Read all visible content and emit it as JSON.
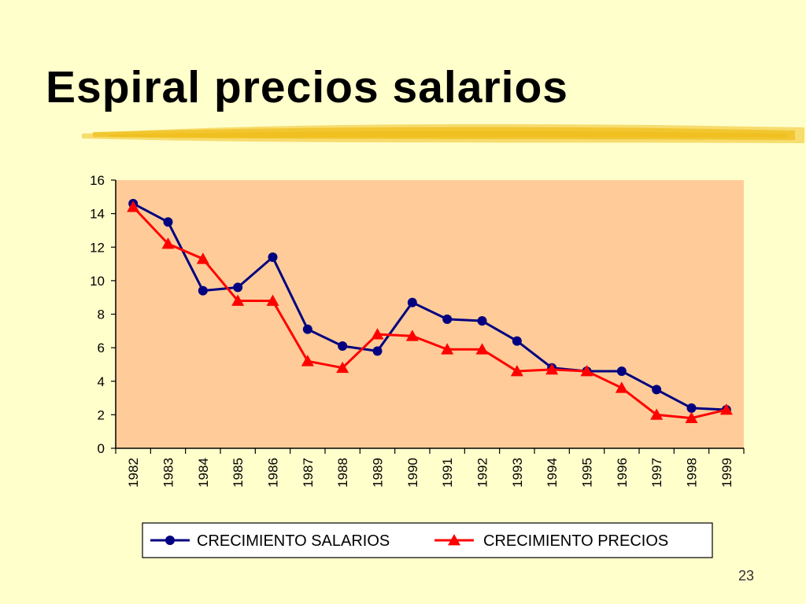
{
  "slide": {
    "title": "Espiral precios salarios",
    "page_number": "23"
  },
  "colors": {
    "background": "#FFFFCC",
    "plot_area": "#FFCC99",
    "underline_brush": "#F0C020",
    "salarios": "#000080",
    "precios": "#FF0000"
  },
  "chart_data": {
    "type": "line",
    "categories": [
      "1982",
      "1983",
      "1984",
      "1985",
      "1986",
      "1987",
      "1988",
      "1989",
      "1990",
      "1991",
      "1992",
      "1993",
      "1994",
      "1995",
      "1996",
      "1997",
      "1998",
      "1999"
    ],
    "series": [
      {
        "name": "CRECIMIENTO SALARIOS",
        "marker": "circle",
        "values": [
          14.6,
          13.5,
          9.4,
          9.6,
          11.4,
          7.1,
          6.1,
          5.8,
          8.7,
          7.7,
          7.6,
          6.4,
          4.8,
          4.6,
          4.6,
          3.5,
          2.4,
          2.3
        ]
      },
      {
        "name": "CRECIMIENTO PRECIOS",
        "marker": "triangle",
        "values": [
          14.4,
          12.2,
          11.3,
          8.8,
          8.8,
          5.2,
          4.8,
          6.8,
          6.7,
          5.9,
          5.9,
          4.6,
          4.7,
          4.6,
          3.6,
          2.0,
          1.8,
          2.3
        ]
      }
    ],
    "title": "",
    "xlabel": "",
    "ylabel": "",
    "ylim": [
      0,
      16
    ],
    "yticks": [
      "0",
      "2",
      "4",
      "6",
      "8",
      "10",
      "12",
      "14",
      "16"
    ],
    "grid": false,
    "legend_position": "bottom"
  }
}
